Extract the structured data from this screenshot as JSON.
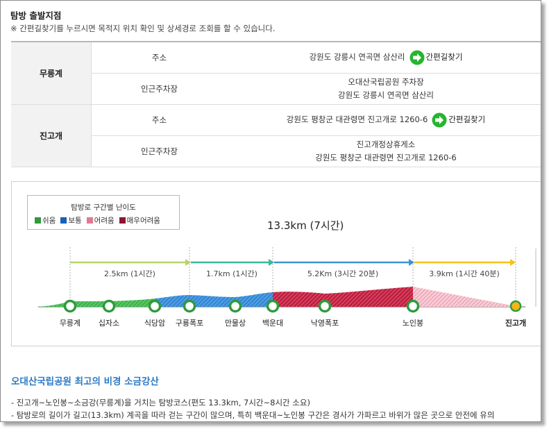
{
  "header": {
    "title": "탐방 출발지점",
    "subtitle": "※ 간편길찾기를 누르시면 목적지 위치 확인 및 상세경로 조회를 할 수 있습니다."
  },
  "trailheads": [
    {
      "name": "무릉계",
      "address_label": "주소",
      "address": "강원도 강릉시 연곡면 삼산리",
      "directions_label": "간편길찾기",
      "parking_label": "인근주차장",
      "parking_name": "오대산국립공원 주차장",
      "parking_address": "강원도 강릉시 연곡면 삼산리"
    },
    {
      "name": "진고개",
      "address_label": "주소",
      "address": "강원도 평창군 대관령면 진고개로 1260-6",
      "directions_label": "간편길찾기",
      "parking_label": "인근주차장",
      "parking_name": "진고개정상휴게소",
      "parking_address": "강원도 평창군 대관령면 진고개로 1260-6"
    }
  ],
  "course": {
    "total": "13.3km (7시간)",
    "legend": {
      "title": "탐방로 구간별 난이도",
      "items": [
        {
          "label": "쉬움",
          "color": "#2e9b3c"
        },
        {
          "label": "보통",
          "color": "#1a5fb8"
        },
        {
          "label": "어려움",
          "color": "#e07a90"
        },
        {
          "label": "매우어려움",
          "color": "#8e1530"
        }
      ]
    },
    "segments": [
      {
        "label": "2.5km (1시간)",
        "color": "#b5d46a"
      },
      {
        "label": "1.7km (1시간)",
        "color": "#3bb89b"
      },
      {
        "label": "5.2Km (3시간 20분)",
        "color": "#3b95d2"
      },
      {
        "label": "3.9km (1시간 40분)",
        "color": "#f5c21b"
      }
    ],
    "stops": [
      "무릉계",
      "십자소",
      "식당암",
      "구룡폭포",
      "만물상",
      "백운대",
      "낙영폭포",
      "노인봉",
      "진고개"
    ]
  },
  "article": {
    "title": "오대산국립공원 최고의 비경 소금강산",
    "lines": [
      "- 진고개~노인봉~소금강(무릉계)을 거치는 탐방코스(편도 13.3km, 7시간~8시간 소요)",
      "- 탐방로의 길이가 길고(13.3km) 계곡을 따라 걷는 구간이 많으며, 특히 백운대~노인봉 구간은 경사가 가파르고 바위가 많은 곳으로 안전에 유의"
    ]
  }
}
